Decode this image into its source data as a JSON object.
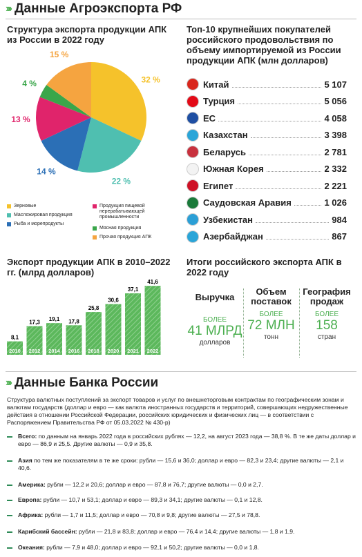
{
  "header1": "Данные Агроэкспорта РФ",
  "pie": {
    "title": "Структура экспорта продукции АПК из России в 2022 году",
    "slices": [
      {
        "label": "Зерновые",
        "value": 32,
        "display": "32 %",
        "color": "#f5c22b"
      },
      {
        "label": "Масложировая продукция",
        "value": 22,
        "display": "22 %",
        "color": "#4fbfb0"
      },
      {
        "label": "Рыба и морепродукты",
        "value": 14,
        "display": "14 %",
        "color": "#2b6fb6"
      },
      {
        "label": "Продукция пищевой перерабатывающей промышленности",
        "value": 13,
        "display": "13 %",
        "color": "#e0246b"
      },
      {
        "label": "Мясная продукция",
        "value": 4,
        "display": "4 %",
        "color": "#3aa64a"
      },
      {
        "label": "Прочая продукция АПК",
        "value": 15,
        "display": "15 %",
        "color": "#f5a440"
      }
    ]
  },
  "buyers": {
    "title": "Топ-10 крупнейших покупателей российского продовольствия по объему импортируемой из России продукции АПК (млн долларов)",
    "items": [
      {
        "name": "Китай",
        "value": "5 107",
        "flag": "#d9261c"
      },
      {
        "name": "Турция",
        "value": "5 056",
        "flag": "#e30a17"
      },
      {
        "name": "ЕС",
        "value": "4 058",
        "flag": "#1f4fa3"
      },
      {
        "name": "Казахстан",
        "value": "3 398",
        "flag": "#2aa5d8"
      },
      {
        "name": "Беларусь",
        "value": "2 781",
        "flag": "#c8313e"
      },
      {
        "name": "Южная Корея",
        "value": "2 332",
        "flag": "#f3f3f3"
      },
      {
        "name": "Египет",
        "value": "2 221",
        "flag": "#ce1126"
      },
      {
        "name": "Саудовская Аравия",
        "value": "1 026",
        "flag": "#1a7a3a"
      },
      {
        "name": "Узбекистан",
        "value": "984",
        "flag": "#2b9fd6"
      },
      {
        "name": "Азербайджан",
        "value": "867",
        "flag": "#2aa5d8"
      }
    ]
  },
  "chart_data": {
    "type": "bar",
    "title": "Экспорт продукции АПК в 2010–2022 гг. (млрд долларов)",
    "categories": [
      "2010",
      "2012",
      "2014",
      "2016",
      "2018",
      "2020",
      "2021",
      "2022"
    ],
    "values": [
      8.1,
      17.3,
      19.1,
      17.8,
      25.8,
      30.6,
      37.1,
      41.6
    ],
    "value_labels": [
      "8,1",
      "17,3",
      "19,1",
      "17,8",
      "25,8",
      "30,6",
      "37,1",
      "41,6"
    ],
    "ylim": [
      0,
      45
    ],
    "color": "#5cb85c"
  },
  "results": {
    "title": "Итоги российского экспорта АПК в 2022 году",
    "cols": [
      {
        "head": "Выручка",
        "more": "БОЛЕЕ",
        "big": "41 МЛРД",
        "unit": "долларов"
      },
      {
        "head": "Объем поставок",
        "more": "БОЛЕЕ",
        "big": "72 МЛН",
        "unit": "тонн"
      },
      {
        "head": "География продаж",
        "more": "БОЛЕЕ",
        "big": "158",
        "unit": "стран"
      }
    ]
  },
  "header2": "Данные Банка России",
  "bank": {
    "intro": "Структура валютных поступлений за экспорт товаров и услуг по внешнеторговым контрактам по географическим зонам и валютам государств (доллар и евро — как валюта иностранных государств и территорий, совершающих недружественные действия в отношении Российской Федерации, российских юридических и физических лиц — в соответствии с Распоряжением Правительства РФ от 05.03.2022 № 430-р)",
    "items": [
      {
        "label": "Всего:",
        "text": " по данным на январь 2022 года в российских рублях — 12,2, на август 2023 года — 38,8 %. В те же даты доллар и евро — 86,9 и 25,5. Другие валюты — 0,9 и 35,8."
      },
      {
        "label": "Азия",
        "text": " по тем же показателям в те же сроки: рубли — 15,6 и 36,0; доллар и евро — 82,3 и 23,4; другие валюты — 2,1 и 40,6."
      },
      {
        "label": "Америка:",
        "text": " рубли — 12,2 и 20,6; доллар и евро — 87,8 и 76,7; другие валюты — 0,0 и 2,7."
      },
      {
        "label": "Европа:",
        "text": " рубли — 10,7 и 53,1; доллар и евро — 89,3 и 34,1; другие валюты — 0,1 и 12,8."
      },
      {
        "label": "Африка:",
        "text": " рубли — 1,7 и 11,5; доллар и евро — 70,8 и 9,8; другие валюты — 27,5 и 78,8."
      },
      {
        "label": "Карибский бассейн:",
        "text": " рубли — 21,8 и 83,8; доллар и евро — 76,4 и 14,4; другие валюты — 1,8 и 1,9."
      },
      {
        "label": "Океания:",
        "text": " рубли — 7,9 и 48,0; доллар и евро — 92,1 и 50,2; другие валюты — 0,0 и 1,8."
      }
    ]
  }
}
